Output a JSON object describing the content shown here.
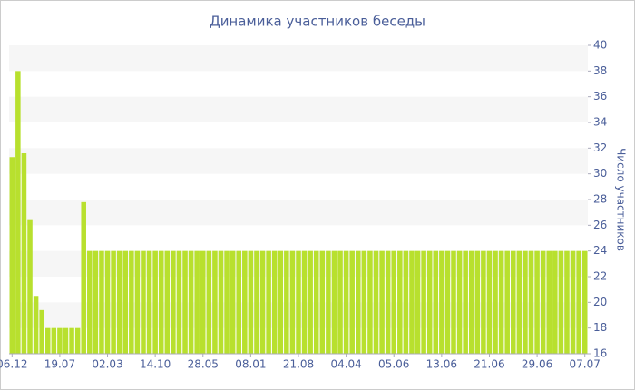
{
  "chart_data": {
    "type": "bar",
    "title": "Динамика участников беседы",
    "y_label": "Число участников",
    "color": "#b8e02e",
    "categories": [
      "06.12",
      null,
      null,
      null,
      null,
      null,
      null,
      null,
      "19.07",
      null,
      null,
      null,
      null,
      null,
      null,
      null,
      "02.03",
      null,
      null,
      null,
      null,
      null,
      null,
      null,
      "14.10",
      null,
      null,
      null,
      null,
      null,
      null,
      null,
      "28.05",
      null,
      null,
      null,
      null,
      null,
      null,
      null,
      "08.01",
      null,
      null,
      null,
      null,
      null,
      null,
      null,
      "21.08",
      null,
      null,
      null,
      null,
      null,
      null,
      null,
      "04.04",
      null,
      null,
      null,
      null,
      null,
      null,
      null,
      "05.06",
      null,
      null,
      null,
      null,
      null,
      null,
      null,
      "13.06",
      null,
      null,
      null,
      null,
      null,
      null,
      null,
      "21.06",
      null,
      null,
      null,
      null,
      null,
      null,
      null,
      "29.06",
      null,
      null,
      null,
      null,
      null,
      null,
      null,
      "07.07"
    ],
    "values": [
      31.3,
      38,
      31.6,
      26.4,
      20.5,
      19.4,
      18,
      18,
      18,
      18,
      18,
      18,
      27.8,
      24,
      24,
      24,
      24,
      24,
      24,
      24,
      24,
      24,
      24,
      24,
      24,
      24,
      24,
      24,
      24,
      24,
      24,
      24,
      24,
      24,
      24,
      24,
      24,
      24,
      24,
      24,
      24,
      24,
      24,
      24,
      24,
      24,
      24,
      24,
      24,
      24,
      24,
      24,
      24,
      24,
      24,
      24,
      24,
      24,
      24,
      24,
      24,
      24,
      24,
      24,
      24,
      24,
      24,
      24,
      24,
      24,
      24,
      24,
      24,
      24,
      24,
      24,
      24,
      24,
      24,
      24,
      24,
      24,
      24,
      24,
      24,
      24,
      24,
      24,
      24,
      24,
      24,
      24,
      24,
      24,
      24,
      24,
      24
    ],
    "ylim": [
      16,
      40
    ],
    "yticks": [
      16,
      18,
      20,
      22,
      24,
      26,
      28,
      30,
      32,
      34,
      36,
      38,
      40
    ],
    "grid": true
  }
}
